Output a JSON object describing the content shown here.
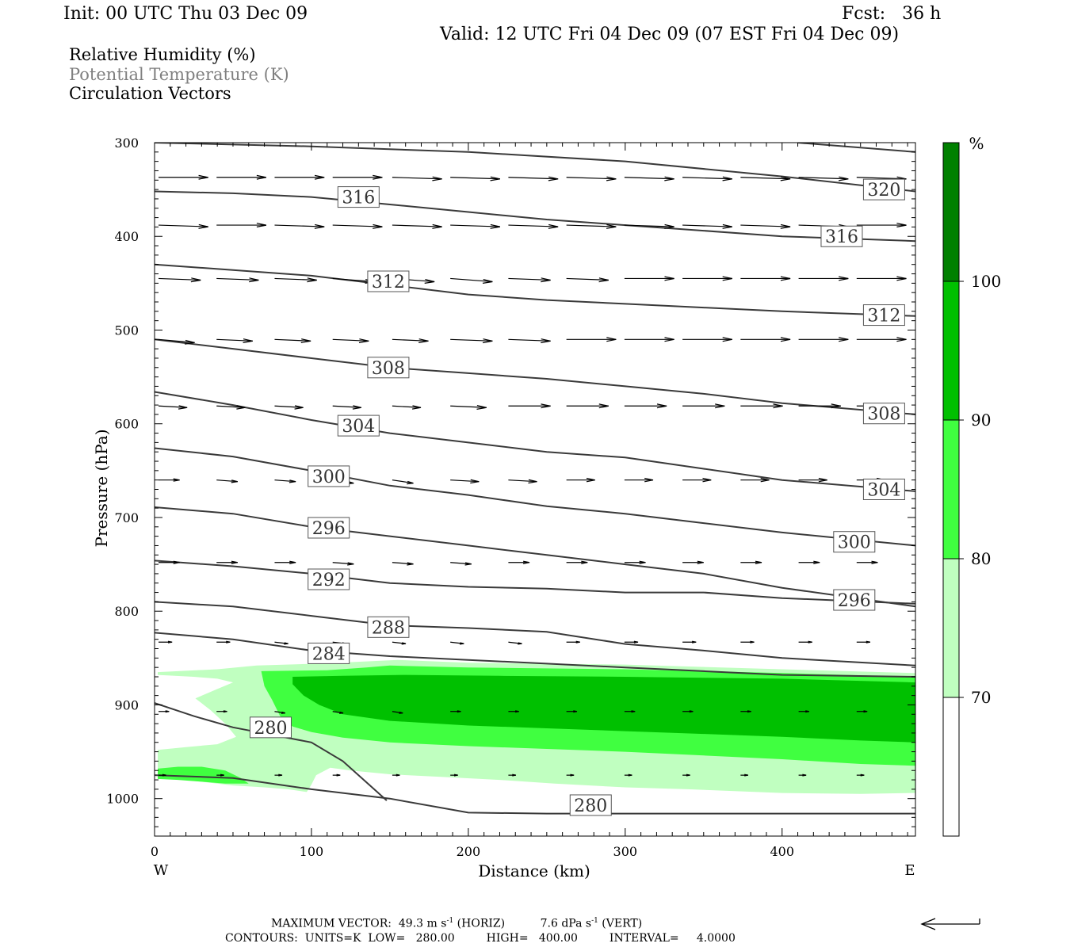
{
  "header": {
    "init": "Init: 00 UTC Thu 03 Dec 09",
    "fcst": "Fcst:   36 h",
    "valid": "Valid: 12 UTC Fri 04 Dec 09 (07 EST Fri 04 Dec 09)"
  },
  "legend_text": {
    "rh": "Relative Humidity (%)",
    "theta": "Potential Temperature (K)",
    "vectors": "Circulation Vectors"
  },
  "footer": {
    "max_vector_label": "MAXIMUM VECTOR:",
    "horiz_value": "49.3 m s",
    "horiz_unit": "(HORIZ)",
    "vert_value": "7.6 dPa s",
    "vert_unit": "(VERT)",
    "exp": "-1",
    "contours": "CONTOURS:  UNITS=K  LOW=   280.00         HIGH=   400.00         INTERVAL=     4.0000"
  },
  "colors": {
    "rh_70": "#c0ffc0",
    "rh_80": "#40ff40",
    "rh_90": "#00c000",
    "rh_100": "#008000",
    "contour": "#3a3a3a"
  },
  "chart_data": {
    "type": "cross-section",
    "xlabel": "Distance (km)",
    "ylabel": "Pressure (hPa)",
    "xlim": [
      0,
      485
    ],
    "ylim": [
      1040,
      300
    ],
    "x_ticks": [
      0,
      100,
      200,
      300,
      400
    ],
    "y_ticks": [
      300,
      400,
      500,
      600,
      700,
      800,
      900,
      1000
    ],
    "x_end_labels": {
      "left": "W",
      "right": "E"
    },
    "colorbar": {
      "unit": "%",
      "levels": [
        70,
        80,
        90,
        100
      ]
    },
    "rh_regions": [
      {
        "level": 70,
        "polygons": [
          [
            [
              2,
              865
            ],
            [
              40,
              862
            ],
            [
              65,
              858
            ],
            [
              105,
              856
            ],
            [
              155,
              852
            ],
            [
              200,
              855
            ],
            [
              300,
              857
            ],
            [
              400,
              862
            ],
            [
              485,
              866
            ],
            [
              485,
              994
            ],
            [
              450,
              995
            ],
            [
              400,
              994
            ],
            [
              340,
              990
            ],
            [
              300,
              988
            ],
            [
              255,
              984
            ],
            [
              220,
              980
            ],
            [
              185,
              977
            ],
            [
              150,
              974
            ],
            [
              125,
              970
            ],
            [
              112,
              967
            ],
            [
              103,
              975
            ],
            [
              100,
              985
            ],
            [
              97,
              993
            ],
            [
              85,
              990
            ],
            [
              70,
              988
            ],
            [
              50,
              986
            ],
            [
              35,
              983
            ],
            [
              20,
              980
            ],
            [
              2,
              978
            ],
            [
              2,
              948
            ],
            [
              20,
              945
            ],
            [
              40,
              942
            ],
            [
              52,
              934
            ],
            [
              45,
              920
            ],
            [
              36,
              906
            ],
            [
              26,
              893
            ],
            [
              40,
              883
            ],
            [
              50,
              876
            ],
            [
              40,
              872
            ],
            [
              25,
              870
            ],
            [
              2,
              868
            ]
          ]
        ]
      },
      {
        "level": 80,
        "polygons": [
          [
            [
              68,
              864
            ],
            [
              110,
              863
            ],
            [
              135,
              860
            ],
            [
              150,
              858
            ],
            [
              200,
              860
            ],
            [
              300,
              862
            ],
            [
              400,
              866
            ],
            [
              485,
              870
            ],
            [
              485,
              965
            ],
            [
              450,
              963
            ],
            [
              400,
              958
            ],
            [
              350,
              954
            ],
            [
              300,
              950
            ],
            [
              250,
              947
            ],
            [
              200,
              944
            ],
            [
              150,
              940
            ],
            [
              120,
              935
            ],
            [
              100,
              929
            ],
            [
              88,
              923
            ],
            [
              80,
              912
            ],
            [
              75,
              895
            ],
            [
              70,
              880
            ]
          ],
          [
            [
              2,
              968
            ],
            [
              15,
              966
            ],
            [
              30,
              966
            ],
            [
              45,
              970
            ],
            [
              55,
              978
            ],
            [
              60,
              984
            ],
            [
              45,
              984
            ],
            [
              30,
              982
            ],
            [
              15,
              980
            ],
            [
              2,
              979
            ]
          ]
        ]
      },
      {
        "level": 90,
        "polygons": [
          [
            [
              88,
              870
            ],
            [
              120,
              869
            ],
            [
              160,
              868
            ],
            [
              220,
              869
            ],
            [
              300,
              870
            ],
            [
              400,
              872
            ],
            [
              485,
              876
            ],
            [
              485,
              940
            ],
            [
              450,
              938
            ],
            [
              400,
              934
            ],
            [
              350,
              931
            ],
            [
              300,
              928
            ],
            [
              250,
              925
            ],
            [
              200,
              922
            ],
            [
              150,
              917
            ],
            [
              120,
              910
            ],
            [
              105,
              900
            ],
            [
              95,
              890
            ],
            [
              88,
              878
            ]
          ]
        ]
      },
      {
        "level": 100,
        "polygons": []
      }
    ],
    "theta_contours": [
      {
        "level": 280,
        "x": [
          0,
          50,
          100,
          150,
          200,
          250,
          300,
          350,
          400,
          485
        ],
        "p": [
          975,
          978,
          990,
          1000,
          1015,
          1016,
          1016,
          1016,
          1016,
          1016
        ]
      },
      {
        "level": 280,
        "x": [
          0,
          25,
          50,
          75,
          100,
          120,
          140,
          148
        ],
        "p": [
          898,
          912,
          924,
          932,
          940,
          960,
          990,
          1002
        ]
      },
      {
        "level": 284,
        "x": [
          0,
          50,
          100,
          150,
          200,
          250,
          300,
          350,
          400,
          485
        ],
        "p": [
          823,
          830,
          842,
          848,
          852,
          856,
          860,
          864,
          868,
          870
        ]
      },
      {
        "level": 288,
        "x": [
          0,
          50,
          100,
          150,
          200,
          250,
          300,
          350,
          400,
          485
        ],
        "p": [
          790,
          795,
          805,
          815,
          818,
          822,
          835,
          842,
          850,
          858
        ]
      },
      {
        "level": 292,
        "x": [
          0,
          50,
          100,
          150,
          200,
          250,
          300,
          350,
          400,
          485
        ],
        "p": [
          746,
          752,
          760,
          770,
          774,
          776,
          780,
          780,
          786,
          792
        ]
      },
      {
        "level": 296,
        "x": [
          0,
          50,
          100,
          150,
          200,
          250,
          300,
          350,
          400,
          485
        ],
        "p": [
          689,
          696,
          710,
          720,
          730,
          740,
          750,
          760,
          775,
          795
        ]
      },
      {
        "level": 300,
        "x": [
          0,
          50,
          100,
          150,
          200,
          250,
          300,
          350,
          400,
          485
        ],
        "p": [
          626,
          635,
          650,
          666,
          676,
          688,
          696,
          706,
          716,
          730
        ]
      },
      {
        "level": 304,
        "x": [
          0,
          50,
          100,
          150,
          200,
          250,
          300,
          350,
          400,
          485
        ],
        "p": [
          566,
          580,
          596,
          610,
          620,
          630,
          636,
          648,
          660,
          672
        ]
      },
      {
        "level": 308,
        "x": [
          0,
          50,
          100,
          150,
          200,
          250,
          300,
          350,
          400,
          485
        ],
        "p": [
          510,
          520,
          530,
          540,
          546,
          552,
          560,
          568,
          578,
          590
        ]
      },
      {
        "level": 312,
        "x": [
          0,
          50,
          100,
          150,
          200,
          250,
          300,
          350,
          400,
          485
        ],
        "p": [
          430,
          436,
          442,
          452,
          462,
          468,
          472,
          476,
          480,
          485
        ]
      },
      {
        "level": 316,
        "x": [
          0,
          50,
          100,
          150,
          200,
          250,
          300,
          350,
          400,
          485
        ],
        "p": [
          352,
          354,
          358,
          366,
          374,
          382,
          388,
          394,
          400,
          405
        ]
      },
      {
        "level": 320,
        "x": [
          0,
          100,
          200,
          300,
          400,
          485
        ],
        "p": [
          300,
          304,
          310,
          320,
          336,
          352
        ]
      },
      {
        "level": 320,
        "x": [
          410,
          485
        ],
        "p": [
          300,
          310
        ]
      }
    ],
    "contour_labels": [
      {
        "text": "316",
        "x": 130,
        "p": 358
      },
      {
        "text": "320",
        "x": 465,
        "p": 350
      },
      {
        "text": "316",
        "x": 438,
        "p": 400
      },
      {
        "text": "312",
        "x": 149,
        "p": 448
      },
      {
        "text": "312",
        "x": 465,
        "p": 484
      },
      {
        "text": "308",
        "x": 149,
        "p": 540
      },
      {
        "text": "308",
        "x": 465,
        "p": 589
      },
      {
        "text": "304",
        "x": 130,
        "p": 602
      },
      {
        "text": "304",
        "x": 465,
        "p": 670
      },
      {
        "text": "300",
        "x": 111,
        "p": 656
      },
      {
        "text": "300",
        "x": 446,
        "p": 726
      },
      {
        "text": "296",
        "x": 111,
        "p": 711
      },
      {
        "text": "296",
        "x": 446,
        "p": 788
      },
      {
        "text": "292",
        "x": 111,
        "p": 766
      },
      {
        "text": "288",
        "x": 149,
        "p": 817
      },
      {
        "text": "284",
        "x": 111,
        "p": 845
      },
      {
        "text": "280",
        "x": 74,
        "p": 924
      },
      {
        "text": "280",
        "x": 278,
        "p": 1007
      }
    ],
    "vectors": {
      "x": [
        0,
        37,
        74,
        111,
        149,
        186,
        223,
        260,
        297,
        334,
        371,
        408,
        445
      ],
      "rows": [
        {
          "p": 337,
          "u": [
            33,
            33,
            33,
            33,
            33,
            33,
            33,
            33,
            33,
            33,
            33,
            33,
            33
          ],
          "w": [
            0,
            0,
            0,
            0,
            1,
            1,
            1,
            1,
            1,
            1,
            1,
            1,
            1
          ]
        },
        {
          "p": 388,
          "u": [
            33,
            33,
            33,
            33,
            33,
            33,
            33,
            33,
            33,
            33,
            33,
            33,
            33
          ],
          "w": [
            1,
            0,
            1,
            1,
            1,
            1,
            1,
            1,
            1,
            1,
            1,
            1,
            0
          ]
        },
        {
          "p": 445,
          "u": [
            28,
            28,
            28,
            28,
            28,
            28,
            28,
            28,
            33,
            33,
            33,
            33,
            33
          ],
          "w": [
            1,
            1,
            1,
            2,
            2,
            2,
            1,
            1,
            0,
            0,
            0,
            0,
            0
          ]
        },
        {
          "p": 510,
          "u": [
            24,
            24,
            24,
            24,
            24,
            28,
            28,
            33,
            33,
            33,
            33,
            33,
            33
          ],
          "w": [
            2,
            1,
            1,
            1,
            1,
            1,
            1,
            0,
            0,
            0,
            0,
            0,
            0
          ]
        },
        {
          "p": 581,
          "u": [
            19,
            19,
            19,
            19,
            19,
            24,
            28,
            28,
            28,
            28,
            28,
            28,
            28
          ],
          "w": [
            1,
            1,
            1,
            1,
            1,
            1,
            0,
            0,
            0,
            0,
            0,
            0,
            0
          ]
        },
        {
          "p": 660,
          "u": [
            14,
            14,
            14,
            14,
            14,
            19,
            19,
            19,
            19,
            19,
            19,
            19,
            19
          ],
          "w": [
            0,
            1,
            1,
            2,
            2,
            1,
            1,
            0,
            0,
            0,
            0,
            0,
            0
          ]
        },
        {
          "p": 748,
          "u": [
            14,
            14,
            14,
            14,
            14,
            14,
            14,
            14,
            14,
            14,
            14,
            14,
            14
          ],
          "w": [
            0,
            0,
            0,
            1,
            1,
            1,
            0,
            0,
            0,
            0,
            0,
            0,
            0
          ]
        },
        {
          "p": 833,
          "u": [
            9,
            9,
            9,
            9,
            9,
            9,
            9,
            9,
            9,
            9,
            9,
            9,
            9
          ],
          "w": [
            0,
            0,
            1,
            1,
            1,
            1,
            1,
            0,
            0,
            0,
            0,
            0,
            0
          ]
        },
        {
          "p": 907,
          "u": [
            7,
            7,
            7,
            7,
            7,
            7,
            7,
            7,
            7,
            7,
            7,
            7,
            7
          ],
          "w": [
            0,
            0,
            1,
            1,
            1,
            0,
            0,
            0,
            0,
            0,
            0,
            0,
            0
          ]
        },
        {
          "p": 975,
          "u": [
            5,
            5,
            5,
            5,
            5,
            5,
            5,
            5,
            5,
            5,
            5,
            5,
            5
          ],
          "w": [
            0,
            0,
            0,
            0,
            0,
            0,
            0,
            0,
            0,
            0,
            0,
            0,
            0
          ]
        }
      ]
    }
  }
}
